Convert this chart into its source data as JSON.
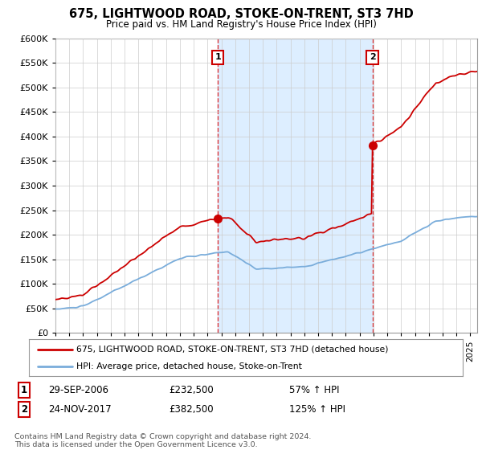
{
  "title": "675, LIGHTWOOD ROAD, STOKE-ON-TRENT, ST3 7HD",
  "subtitle": "Price paid vs. HM Land Registry's House Price Index (HPI)",
  "legend_line1": "675, LIGHTWOOD ROAD, STOKE-ON-TRENT, ST3 7HD (detached house)",
  "legend_line2": "HPI: Average price, detached house, Stoke-on-Trent",
  "annotation1_label": "1",
  "annotation1_date": "29-SEP-2006",
  "annotation1_price": "£232,500",
  "annotation1_hpi": "57% ↑ HPI",
  "annotation2_label": "2",
  "annotation2_date": "24-NOV-2017",
  "annotation2_price": "£382,500",
  "annotation2_hpi": "125% ↑ HPI",
  "footer": "Contains HM Land Registry data © Crown copyright and database right 2024.\nThis data is licensed under the Open Government Licence v3.0.",
  "red_color": "#cc0000",
  "blue_color": "#7aaddb",
  "shade_color": "#ddeeff",
  "dashed_color": "#dd2222",
  "point_color": "#cc0000",
  "background_color": "#ffffff",
  "grid_color": "#cccccc",
  "ylim": [
    0,
    600000
  ],
  "yticks": [
    0,
    50000,
    100000,
    150000,
    200000,
    250000,
    300000,
    350000,
    400000,
    450000,
    500000,
    550000,
    600000
  ],
  "xlim_start": 1995.0,
  "xlim_end": 2025.5,
  "point1_x": 2006.75,
  "point1_y": 232500,
  "point2_x": 2017.92,
  "point2_y": 382500
}
